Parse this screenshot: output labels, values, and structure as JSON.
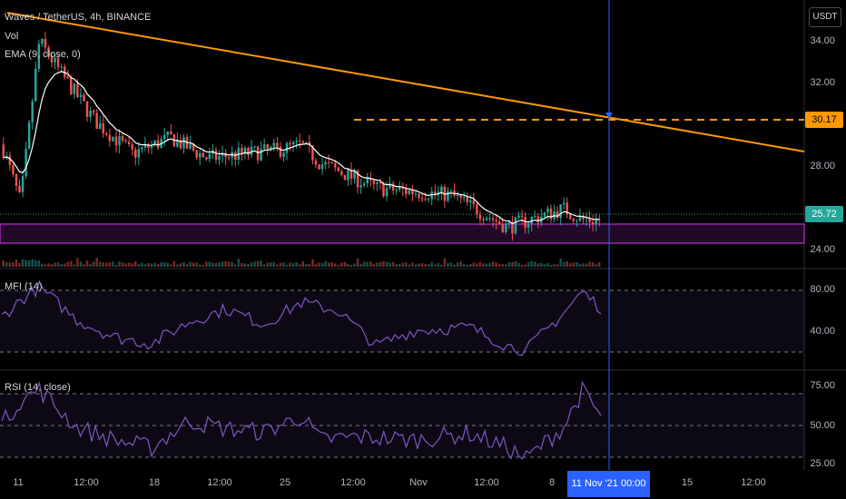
{
  "legend": {
    "title": "Waves / TetherUS, 4h, BINANCE",
    "vol": "Vol",
    "ema": "EMA (9, close, 0)",
    "mfi": "MFI (14)",
    "rsi": "RSI (14, close)"
  },
  "currency_button": "USDT",
  "price_badges": {
    "target": "30.17",
    "last": "25.72"
  },
  "x_axis": {
    "labels": [
      "11",
      "12:00",
      "18",
      "12:00",
      "25",
      "12:00",
      "Nov",
      "12:00",
      "8",
      "15",
      "12:00"
    ],
    "crosshair_label": "11 Nov '21   00:00"
  },
  "colors": {
    "up": "#26a69a",
    "down": "#ef5350",
    "ema": "#ffffff",
    "trendline": "#ff9800",
    "oscillator": "#7e57c2",
    "zone": "#9c27b0",
    "crosshair": "#2962ff"
  },
  "chart_data": [
    {
      "type": "candlestick",
      "title": "Waves / TetherUS, 4h, BINANCE",
      "y_ticks": [
        34.0,
        32.0,
        28.0,
        24.0
      ],
      "y_tick_labels": [
        "34.00",
        "32.00",
        "28.00",
        "24.00"
      ],
      "ylim": [
        23.6,
        35.3
      ],
      "x_tick_labels": [
        "11",
        "12:00",
        "18",
        "12:00",
        "25",
        "12:00",
        "Nov",
        "12:00",
        "8",
        "15",
        "12:00"
      ],
      "indicators": [
        "Vol",
        "EMA (9, close, 0)"
      ],
      "key_points": [
        {
          "date": "Oct 10",
          "price": 29.0
        },
        {
          "date": "Oct 11",
          "price": 26.5
        },
        {
          "date": "Oct 12",
          "price": 33.5
        },
        {
          "date": "Oct 13",
          "price": 32.3
        },
        {
          "date": "Oct 15",
          "price": 30.0
        },
        {
          "date": "Oct 17",
          "price": 28.6
        },
        {
          "date": "Oct 19",
          "price": 29.3
        },
        {
          "date": "Oct 21",
          "price": 28.4
        },
        {
          "date": "Oct 25",
          "price": 28.8
        },
        {
          "date": "Oct 26",
          "price": 29.0
        },
        {
          "date": "Oct 27",
          "price": 28.2
        },
        {
          "date": "Oct 30",
          "price": 27.1
        },
        {
          "date": "Nov 3",
          "price": 26.8
        },
        {
          "date": "Nov 6",
          "price": 25.4
        },
        {
          "date": "Nov 9",
          "price": 26.2
        },
        {
          "date": "Nov 10",
          "price": 25.72
        }
      ],
      "trendline": [
        {
          "date": "Oct 10",
          "price": 35.0
        },
        {
          "date": "Nov 18",
          "price": 29.0
        }
      ],
      "horizontal_level": 30.17,
      "zone": [
        24.6,
        25.6
      ],
      "last_price": 25.72,
      "crosshair": "11 Nov '21 00:00"
    },
    {
      "type": "line",
      "title": "MFI (14)",
      "y_tick_labels": [
        "80.00",
        "40.00"
      ],
      "bands": [
        80,
        20
      ],
      "points": [
        {
          "date": "Oct 10",
          "value": 55
        },
        {
          "date": "Oct 11",
          "value": 70
        },
        {
          "date": "Oct 12",
          "value": 82
        },
        {
          "date": "Oct 14",
          "value": 52
        },
        {
          "date": "Oct 16",
          "value": 36
        },
        {
          "date": "Oct 18",
          "value": 30
        },
        {
          "date": "Oct 20",
          "value": 50
        },
        {
          "date": "Oct 22",
          "value": 62
        },
        {
          "date": "Oct 24",
          "value": 48
        },
        {
          "date": "Oct 26",
          "value": 68
        },
        {
          "date": "Oct 28",
          "value": 60
        },
        {
          "date": "Oct 30",
          "value": 28
        },
        {
          "date": "Nov 1",
          "value": 42
        },
        {
          "date": "Nov 4",
          "value": 45
        },
        {
          "date": "Nov 6",
          "value": 28
        },
        {
          "date": "Nov 7",
          "value": 24
        },
        {
          "date": "Nov 9",
          "value": 58
        },
        {
          "date": "Nov 10",
          "value": 78
        },
        {
          "date": "Nov 11",
          "value": 63
        }
      ]
    },
    {
      "type": "line",
      "title": "RSI (14, close)",
      "y_tick_labels": [
        "75.00",
        "50.00",
        "25.00"
      ],
      "bands": [
        70,
        30
      ],
      "points": [
        {
          "date": "Oct 10",
          "value": 50
        },
        {
          "date": "Oct 11",
          "value": 65
        },
        {
          "date": "Oct 12",
          "value": 72
        },
        {
          "date": "Oct 14",
          "value": 48
        },
        {
          "date": "Oct 16",
          "value": 40
        },
        {
          "date": "Oct 18",
          "value": 35
        },
        {
          "date": "Oct 20",
          "value": 52
        },
        {
          "date": "Oct 22",
          "value": 47
        },
        {
          "date": "Oct 24",
          "value": 45
        },
        {
          "date": "Oct 26",
          "value": 55
        },
        {
          "date": "Oct 27",
          "value": 40
        },
        {
          "date": "Oct 29",
          "value": 42
        },
        {
          "date": "Nov 1",
          "value": 40
        },
        {
          "date": "Nov 4",
          "value": 44
        },
        {
          "date": "Nov 6",
          "value": 35
        },
        {
          "date": "Nov 7",
          "value": 28
        },
        {
          "date": "Nov 9",
          "value": 48
        },
        {
          "date": "Nov 10",
          "value": 71
        },
        {
          "date": "Nov 11",
          "value": 55
        }
      ]
    }
  ]
}
